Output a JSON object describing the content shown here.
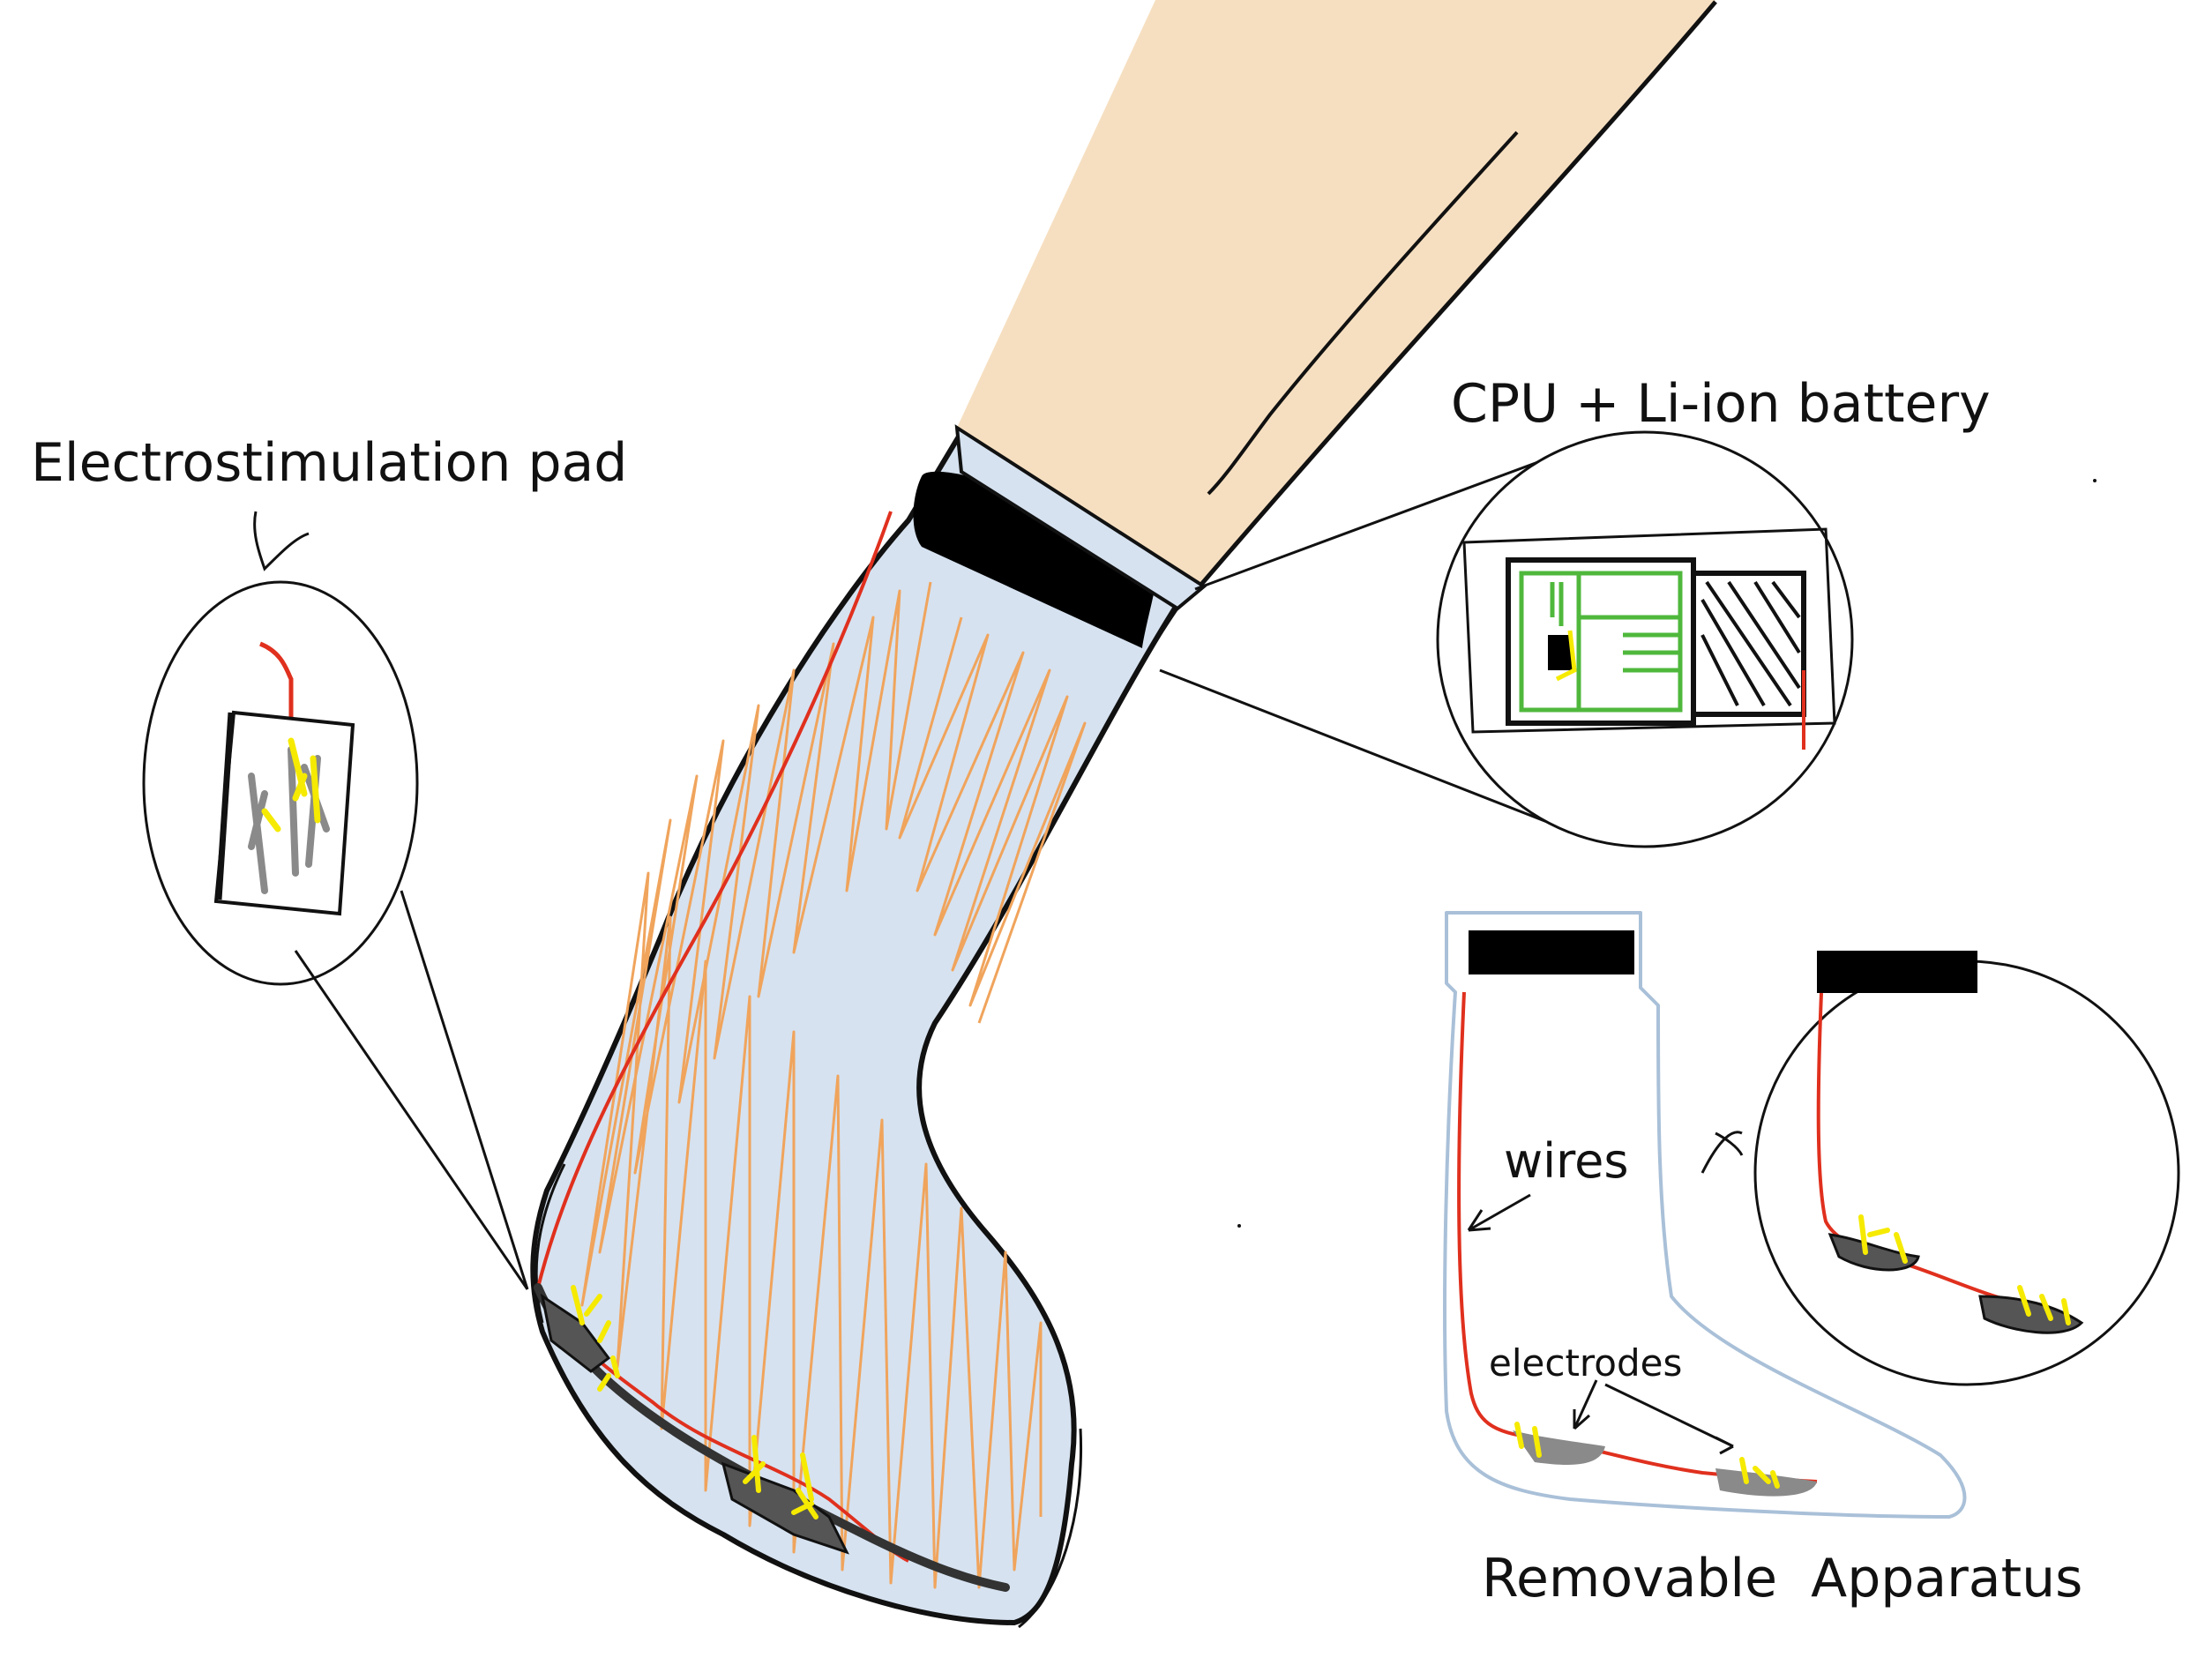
{
  "labels": {
    "pad": "Electrostimulation pad",
    "cpu": "CPU + Li-ion battery",
    "wires": "wires",
    "electrodes": "electrodes",
    "removable": "Removable  Apparatus"
  },
  "colors": {
    "skin": "#f6dfc0",
    "sock": "#d6e2f0",
    "scribble": "#f0a45c",
    "wire": "#e0301e",
    "electrode": "#8a8a8a",
    "spark": "#f5ea00",
    "band": "#000000",
    "circuit": "#4fb83c",
    "outline_light": "#a9c0d8",
    "ink": "#111111"
  }
}
